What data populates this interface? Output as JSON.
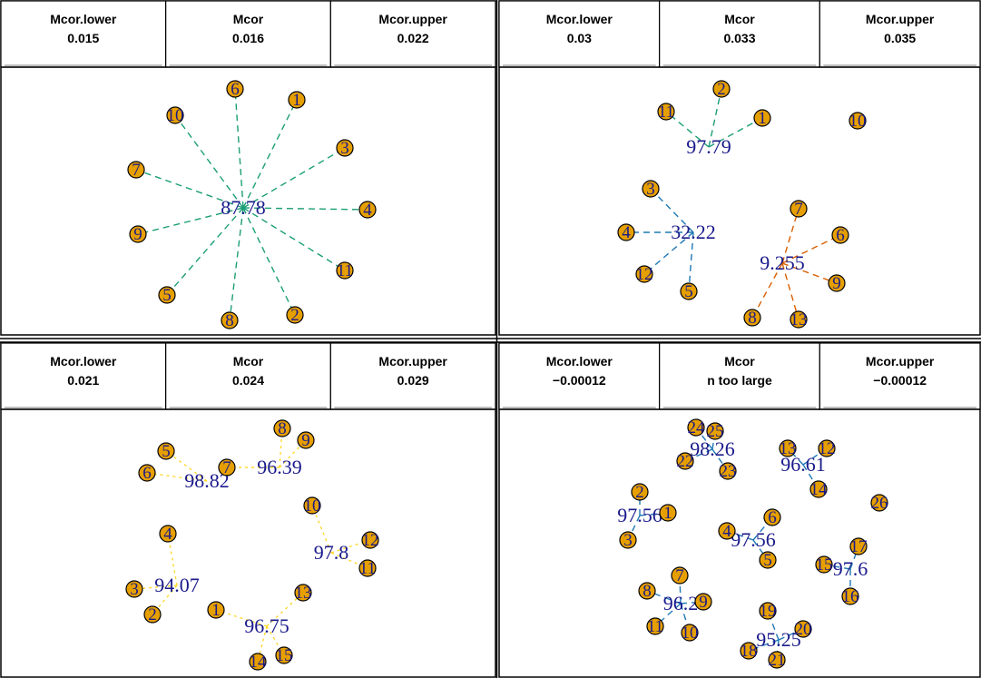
{
  "panels": [
    {
      "id": "top-left",
      "header": [
        {
          "name": "Mcor.lower",
          "value": "0.015"
        },
        {
          "name": "Mcor",
          "value": "0.016"
        },
        {
          "name": "Mcor.upper",
          "value": "0.022"
        }
      ],
      "nodes": [
        "6",
        "1",
        "10",
        "3",
        "7",
        "4",
        "9",
        "11",
        "5",
        "8",
        "2"
      ],
      "clusters": [
        {
          "label": "87.78",
          "color": "#1b9e77",
          "members": [
            "6",
            "1",
            "10",
            "3",
            "7",
            "4",
            "9",
            "11",
            "5",
            "8",
            "2"
          ]
        }
      ]
    },
    {
      "id": "top-right",
      "header": [
        {
          "name": "Mcor.lower",
          "value": "0.03"
        },
        {
          "name": "Mcor",
          "value": "0.033"
        },
        {
          "name": "Mcor.upper",
          "value": "0.035"
        }
      ],
      "nodes": [
        "2",
        "11",
        "1",
        "10",
        "3",
        "7",
        "4",
        "6",
        "12",
        "5",
        "9",
        "8",
        "13"
      ],
      "clusters": [
        {
          "label": "97.79",
          "color": "#1b9e77",
          "members": [
            "2",
            "11",
            "1"
          ]
        },
        {
          "label": "32.22",
          "color": "#1f78b4",
          "members": [
            "3",
            "4",
            "12",
            "5"
          ]
        },
        {
          "label": "9.255",
          "color": "#d95f02",
          "members": [
            "7",
            "6",
            "9",
            "8",
            "13"
          ]
        }
      ]
    },
    {
      "id": "bottom-left",
      "header": [
        {
          "name": "Mcor.lower",
          "value": "0.021"
        },
        {
          "name": "Mcor",
          "value": "0.024"
        },
        {
          "name": "Mcor.upper",
          "value": "0.029"
        }
      ],
      "nodes": [
        "8",
        "9",
        "5",
        "6",
        "7",
        "10",
        "4",
        "12",
        "11",
        "3",
        "13",
        "2",
        "1",
        "14",
        "15"
      ],
      "clusters": [
        {
          "label": "98.82",
          "color": "#ffd92f",
          "members": [
            "5",
            "6"
          ]
        },
        {
          "label": "96.39",
          "color": "#ffd92f",
          "members": [
            "7",
            "8",
            "9"
          ]
        },
        {
          "label": "97.8",
          "color": "#ffd92f",
          "members": [
            "10",
            "12",
            "11"
          ]
        },
        {
          "label": "94.07",
          "color": "#ffd92f",
          "members": [
            "4",
            "3",
            "2"
          ]
        },
        {
          "label": "96.75",
          "color": "#ffd92f",
          "members": [
            "1",
            "13",
            "14",
            "15"
          ]
        }
      ]
    },
    {
      "id": "bottom-right",
      "header": [
        {
          "name": "Mcor.lower",
          "value": "−0.00012"
        },
        {
          "name": "Mcor",
          "value": "n too large"
        },
        {
          "name": "Mcor.upper",
          "value": "−0.00012"
        }
      ],
      "nodes": [
        "24",
        "25",
        "22",
        "23",
        "13",
        "12",
        "14",
        "26",
        "2",
        "1",
        "3",
        "6",
        "4",
        "5",
        "17",
        "15",
        "16",
        "7",
        "8",
        "9",
        "11",
        "10",
        "19",
        "20",
        "18",
        "21"
      ],
      "clusters": [
        {
          "label": "98.26",
          "color": "#1f78b4",
          "members": [
            "24",
            "25",
            "22",
            "23"
          ]
        },
        {
          "label": "96.61",
          "color": "#1f78b4",
          "members": [
            "13",
            "12",
            "14"
          ]
        },
        {
          "label": "97.56",
          "color": "#1f78b4",
          "members": [
            "2",
            "1",
            "3"
          ]
        },
        {
          "label": "97.56",
          "color": "#1f78b4",
          "members": [
            "6",
            "4",
            "5"
          ]
        },
        {
          "label": "97.6",
          "color": "#1f78b4",
          "members": [
            "17",
            "15",
            "16"
          ]
        },
        {
          "label": "96.2",
          "color": "#1f78b4",
          "members": [
            "7",
            "8",
            "9",
            "11",
            "10"
          ]
        },
        {
          "label": "95.25",
          "color": "#1f78b4",
          "members": [
            "19",
            "20",
            "18",
            "21"
          ]
        }
      ]
    }
  ],
  "colors": {
    "node_fill": "#e69f00",
    "node_stroke": "#000000",
    "label_text": "#1a1a8c"
  }
}
